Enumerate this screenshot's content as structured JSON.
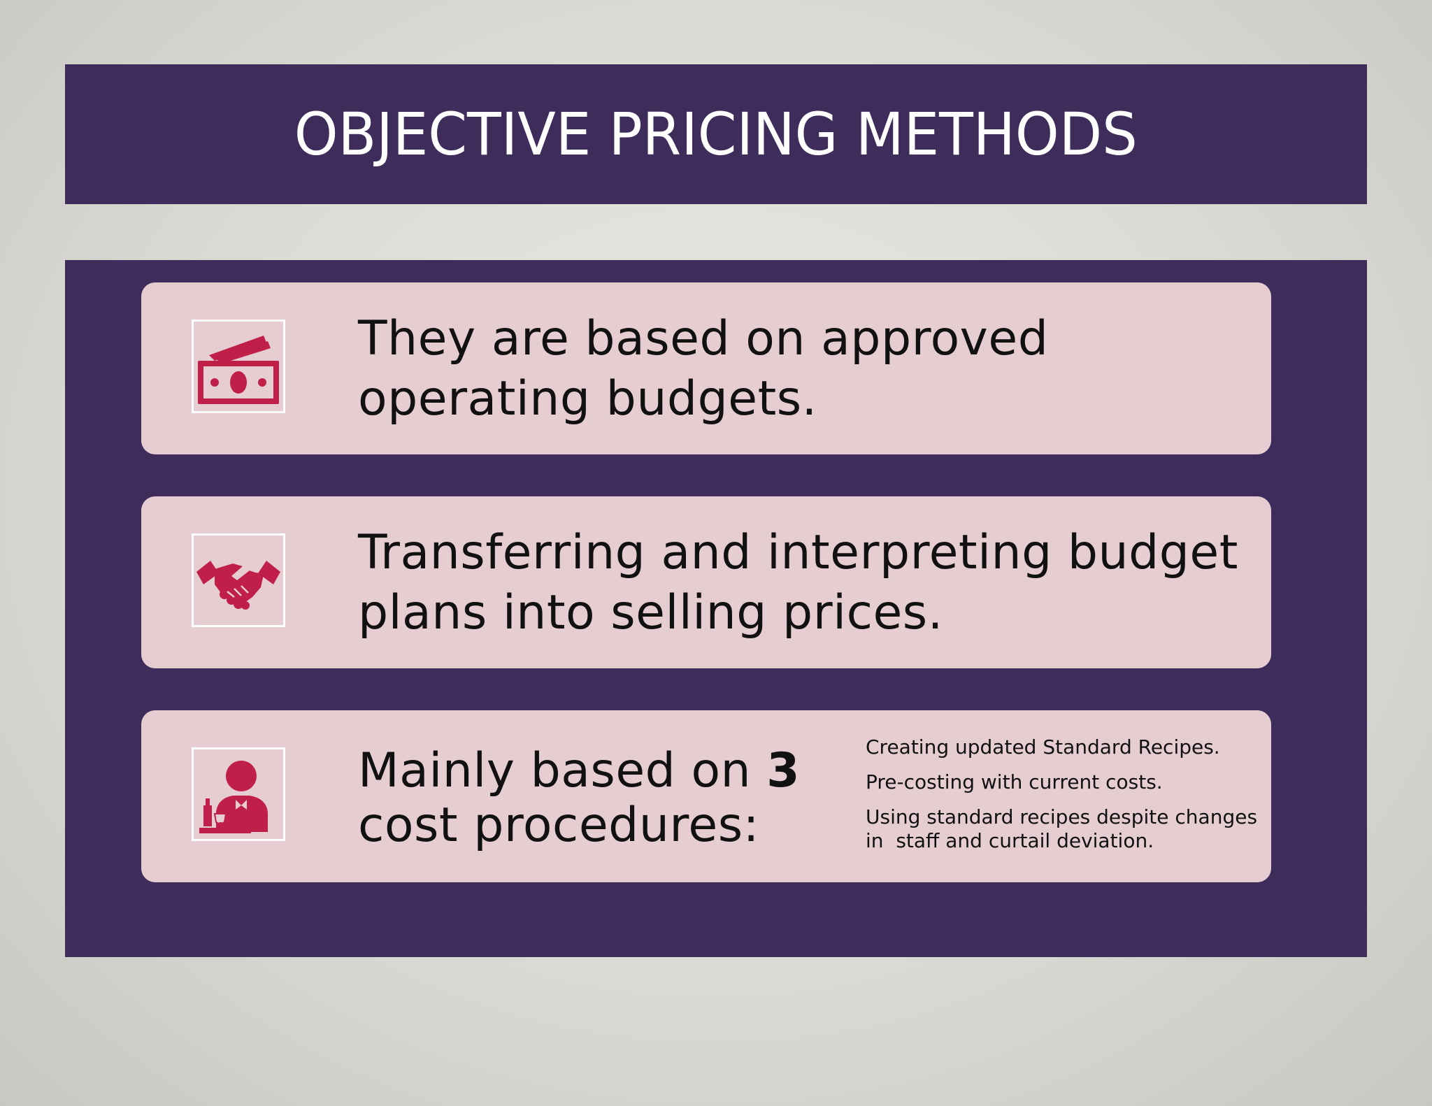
{
  "slide": {
    "title": "OBJECTIVE PRICING METHODS"
  },
  "colors": {
    "accent_dark": "#3e2c5b",
    "card_background": "#e6cdd1",
    "icon_color": "#c01f4a",
    "title_text": "#ffffff"
  },
  "cards": [
    {
      "icon": "money-icon",
      "text": "They are based on approved operating budgets."
    },
    {
      "icon": "handshake-icon",
      "text": "Transferring and interpreting budget plans  into selling prices."
    },
    {
      "icon": "waiter-icon",
      "text_before": "Mainly based on ",
      "text_bold": "3",
      "text_after": " cost procedures:",
      "procedures": [
        "Creating updated Standard Recipes.",
        "Pre-costing with current costs.",
        "Using standard recipes despite changes in  staff and curtail deviation."
      ]
    }
  ]
}
